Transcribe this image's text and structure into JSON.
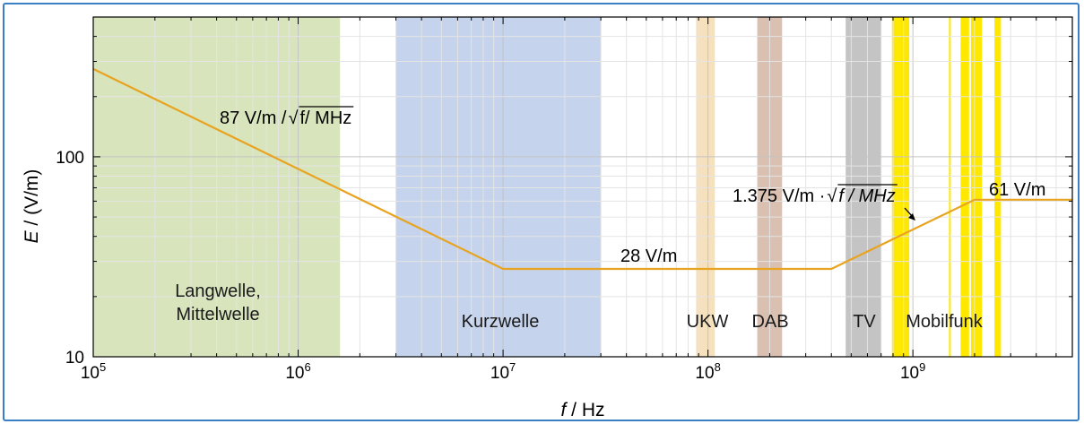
{
  "chart_data": {
    "type": "line",
    "xscale": "log",
    "yscale": "log",
    "xlim": [
      100000,
      6000000000
    ],
    "ylim": [
      10,
      500
    ],
    "xlabel": {
      "var": "f",
      "unit": " / Hz"
    },
    "ylabel": {
      "var": "E",
      "unit": " / (V/m)"
    },
    "x_ticks": [
      {
        "base": "10",
        "exp": "5"
      },
      {
        "base": "10",
        "exp": "6"
      },
      {
        "base": "10",
        "exp": "7"
      },
      {
        "base": "10",
        "exp": "8"
      },
      {
        "base": "10",
        "exp": "9"
      }
    ],
    "y_ticks": [
      "10",
      "100"
    ],
    "grid": true,
    "series": [
      {
        "color": "#e8a420",
        "x": [
          100000,
          10000000,
          400000000,
          2000000000,
          6000000000
        ],
        "y": [
          275,
          27.5,
          27.5,
          61,
          61
        ]
      }
    ],
    "bands": [
      {
        "label": "Langwelle,\nMittelwelle",
        "x0": 100000,
        "x1": 1600000,
        "color": "#d8e4bc"
      },
      {
        "label": "Kurzwelle",
        "x0": 3000000,
        "x1": 30000000,
        "color": "#c5d3ec"
      },
      {
        "label": "UKW",
        "x0": 87500000,
        "x1": 108000000,
        "color": "#f6e1be"
      },
      {
        "label": "DAB",
        "x0": 174000000,
        "x1": 230000000,
        "color": "#d9c0b0"
      },
      {
        "label": "TV",
        "x0": 470000000,
        "x1": 700000000,
        "color": "#c4c4c4"
      },
      {
        "label": "Mobilfunk",
        "x0": 790000000,
        "x1": 960000000,
        "color": "#ffe800"
      },
      {
        "label": "",
        "x0": 1500000000,
        "x1": 1520000000,
        "color": "#ffe800"
      },
      {
        "label": "",
        "x0": 1710000000,
        "x1": 1880000000,
        "color": "#ffe800"
      },
      {
        "label": "",
        "x0": 1920000000,
        "x1": 2170000000,
        "color": "#ffe800"
      },
      {
        "label": "",
        "x0": 2500000000,
        "x1": 2690000000,
        "color": "#ffe800"
      }
    ],
    "annotations": [
      {
        "id": "ann-87",
        "pre": "87 V/m / ",
        "sqrt": "f/ MHz",
        "italic_sqrt": false
      },
      {
        "id": "ann-28",
        "pre": "28 V/m"
      },
      {
        "id": "ann-1375",
        "pre": "1.375 V/m · ",
        "sqrt": "f / MHz",
        "italic_sqrt": true
      },
      {
        "id": "ann-61",
        "pre": "61 V/m"
      }
    ]
  }
}
